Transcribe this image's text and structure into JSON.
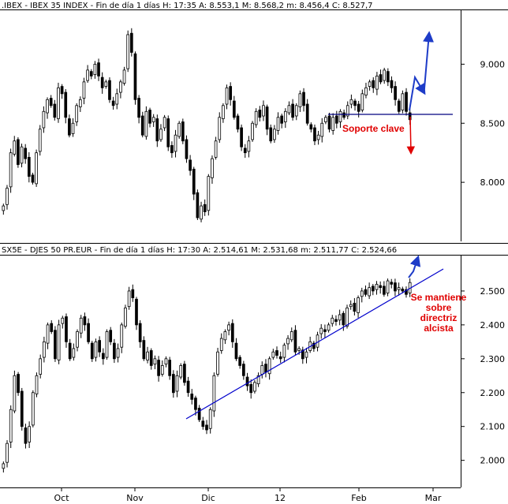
{
  "chart_data": [
    {
      "type": "candlestick",
      "header": ".IBEX - IBEX 35 INDEX - Fin de día 1 días H: 17:35  A: 8.553,1  M: 8.568,2  m: 8.456,4  C: 8.527,7",
      "ylim": [
        7500,
        9450
      ],
      "yticks": [
        8000,
        8500,
        9000
      ],
      "ytick_labels": [
        "8.000",
        "8.500",
        "9.000"
      ],
      "grid": false,
      "support_level": 8470,
      "support_label": "Soporte clave",
      "closes": [
        7800,
        7950,
        8250,
        8350,
        8150,
        8300,
        8200,
        8050,
        8000,
        8250,
        8450,
        8600,
        8700,
        8650,
        8550,
        8800,
        8750,
        8550,
        8400,
        8500,
        8650,
        8700,
        8850,
        8950,
        8900,
        9000,
        8900,
        8800,
        8850,
        8700,
        8650,
        8750,
        8850,
        8950,
        9250,
        9100,
        8700,
        8550,
        8400,
        8600,
        8500,
        8550,
        8350,
        8450,
        8550,
        8300,
        8250,
        8400,
        8500,
        8350,
        8200,
        8100,
        7900,
        7700,
        7800,
        7750,
        8050,
        8200,
        8350,
        8550,
        8650,
        8800,
        8700,
        8550,
        8450,
        8300,
        8250,
        8350,
        8500,
        8600,
        8550,
        8650,
        8450,
        8350,
        8450,
        8550,
        8500,
        8600,
        8650,
        8550,
        8650,
        8750,
        8650,
        8500,
        8450,
        8350,
        8400,
        8500,
        8550,
        8450,
        8550,
        8500,
        8600,
        8550,
        8650,
        8700,
        8650,
        8600,
        8750,
        8800,
        8850,
        8800,
        8900,
        8850,
        8950,
        8850,
        8800,
        8700,
        8600,
        8750,
        8600,
        8530
      ]
    },
    {
      "type": "candlestick",
      "header": "SX5E - DJES 50 PR.EUR - Fin de día 1 días H: 17:30  A: 2.514,61  M: 2.531,68  m: 2.511,77  C: 2.524,66",
      "ylim": [
        1920,
        2600
      ],
      "yticks": [
        2000,
        2100,
        2200,
        2300,
        2400,
        2500
      ],
      "ytick_labels": [
        "2.000",
        "2.100",
        "2.200",
        "2.300",
        "2.400",
        "2.500"
      ],
      "grid": false,
      "trendline_label": [
        "Se mantiene",
        "sobre",
        "directriz",
        "alcista"
      ],
      "closes": [
        1990,
        2050,
        2150,
        2250,
        2200,
        2100,
        2050,
        2100,
        2200,
        2250,
        2300,
        2350,
        2400,
        2380,
        2300,
        2400,
        2420,
        2350,
        2300,
        2330,
        2380,
        2420,
        2400,
        2350,
        2300,
        2350,
        2320,
        2300,
        2380,
        2350,
        2300,
        2330,
        2400,
        2450,
        2500,
        2480,
        2400,
        2350,
        2300,
        2320,
        2280,
        2300,
        2250,
        2280,
        2300,
        2250,
        2200,
        2250,
        2280,
        2230,
        2200,
        2180,
        2150,
        2120,
        2100,
        2090,
        2150,
        2250,
        2320,
        2360,
        2380,
        2400,
        2350,
        2300,
        2280,
        2250,
        2220,
        2200,
        2230,
        2250,
        2280,
        2260,
        2300,
        2320,
        2310,
        2300,
        2340,
        2360,
        2380,
        2320,
        2330,
        2300,
        2320,
        2350,
        2330,
        2370,
        2390,
        2380,
        2400,
        2420,
        2410,
        2430,
        2400,
        2450,
        2460,
        2440,
        2480,
        2500,
        2490,
        2510,
        2500,
        2520,
        2510,
        2490,
        2530,
        2520,
        2500,
        2510,
        2500,
        2490,
        2525
      ]
    }
  ],
  "x_axis": {
    "labels": [
      "Oct",
      "Nov",
      "Dic",
      "12",
      "Feb",
      "Mar"
    ]
  },
  "colors": {
    "candle_up": "#ffffff",
    "candle_down": "#000000",
    "support_line": "#000080",
    "trendline": "#0000cc",
    "arrow_blue": "#1e3cc8",
    "arrow_red": "#e00000",
    "annotation_red": "#e00000"
  }
}
